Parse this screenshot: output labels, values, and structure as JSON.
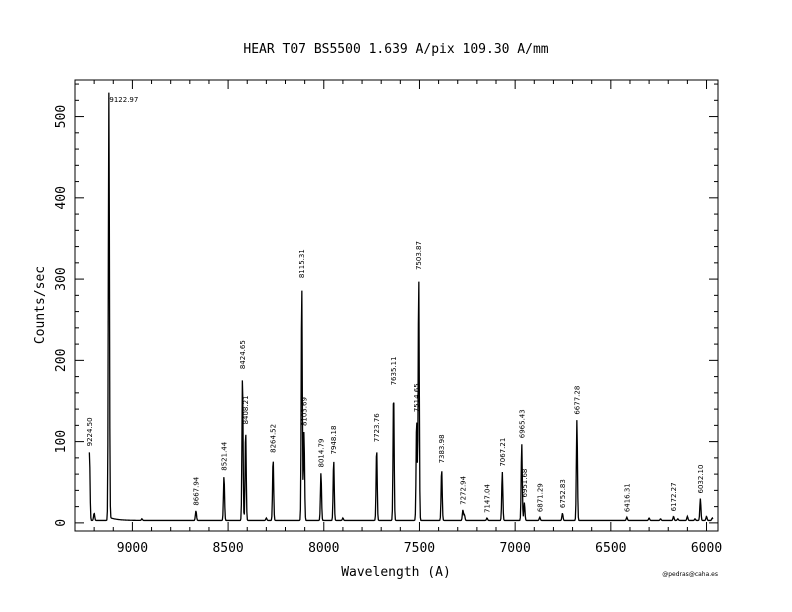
{
  "chart_data": {
    "type": "line",
    "title": "HEAR  T07  BS5500  1.639 A/pix  109.30 A/mm",
    "xlabel": "Wavelength (A)",
    "ylabel": "Counts/sec",
    "xlim": [
      9300,
      5940
    ],
    "ylim": [
      -10,
      545
    ],
    "x_ticks": [
      9000,
      8500,
      8000,
      7500,
      7000,
      6500,
      6000
    ],
    "x_tick_labels": [
      "9000",
      "8500",
      "8000",
      "7500",
      "7000",
      "6500",
      "6000"
    ],
    "y_ticks": [
      0,
      100,
      200,
      300,
      400,
      500
    ],
    "y_tick_labels": [
      "0",
      "100",
      "200",
      "300",
      "400",
      "500"
    ],
    "baseline": 3,
    "peaks": [
      {
        "x": 9224.5,
        "y": 88,
        "label": "9224.50"
      },
      {
        "x": 9122.97,
        "y": 530,
        "label": "9122.97"
      },
      {
        "x": 8667.94,
        "y": 15,
        "label": "8667.94"
      },
      {
        "x": 8521.44,
        "y": 58,
        "label": "8521.44"
      },
      {
        "x": 8424.65,
        "y": 183,
        "label": "8424.65"
      },
      {
        "x": 8408.21,
        "y": 115,
        "label": "8408.21"
      },
      {
        "x": 8264.52,
        "y": 80,
        "label": "8264.52"
      },
      {
        "x": 8115.31,
        "y": 295,
        "label": "8115.31"
      },
      {
        "x": 8103.69,
        "y": 113,
        "label": "8103.69"
      },
      {
        "x": 8014.79,
        "y": 62,
        "label": "8014.79"
      },
      {
        "x": 7948.18,
        "y": 78,
        "label": "7948.18"
      },
      {
        "x": 7723.76,
        "y": 93,
        "label": "7723.76"
      },
      {
        "x": 7635.11,
        "y": 163,
        "label": "7635.11"
      },
      {
        "x": 7514.65,
        "y": 130,
        "label": "7514.65"
      },
      {
        "x": 7503.87,
        "y": 305,
        "label": "7503.87"
      },
      {
        "x": 7383.98,
        "y": 67,
        "label": "7383.98"
      },
      {
        "x": 7272.94,
        "y": 16,
        "label": "7272.94"
      },
      {
        "x": 7147.04,
        "y": 6,
        "label": "7147.04"
      },
      {
        "x": 7067.21,
        "y": 63,
        "label": "7067.21"
      },
      {
        "x": 6965.43,
        "y": 98,
        "label": "6965.43"
      },
      {
        "x": 6951.68,
        "y": 25,
        "label": "6951.68"
      },
      {
        "x": 6871.29,
        "y": 7,
        "label": "6871.29"
      },
      {
        "x": 6752.83,
        "y": 12,
        "label": "6752.83"
      },
      {
        "x": 6677.28,
        "y": 127,
        "label": "6677.28"
      },
      {
        "x": 6416.31,
        "y": 7,
        "label": "6416.31"
      },
      {
        "x": 6172.27,
        "y": 8,
        "label": "6172.27"
      },
      {
        "x": 6032.1,
        "y": 30,
        "label": "6032.10"
      }
    ],
    "minor_lines": [
      {
        "x": 9200,
        "y": 12
      },
      {
        "x": 8950,
        "y": 5
      },
      {
        "x": 8300,
        "y": 6
      },
      {
        "x": 7900,
        "y": 6
      },
      {
        "x": 7265,
        "y": 10
      },
      {
        "x": 6300,
        "y": 6
      },
      {
        "x": 6240,
        "y": 5
      },
      {
        "x": 6150,
        "y": 5
      },
      {
        "x": 6100,
        "y": 8
      },
      {
        "x": 6060,
        "y": 5
      },
      {
        "x": 6000,
        "y": 8
      },
      {
        "x": 5970,
        "y": 6
      }
    ],
    "credit": "@pedras@caha.es",
    "grid": false,
    "legend": "none"
  }
}
